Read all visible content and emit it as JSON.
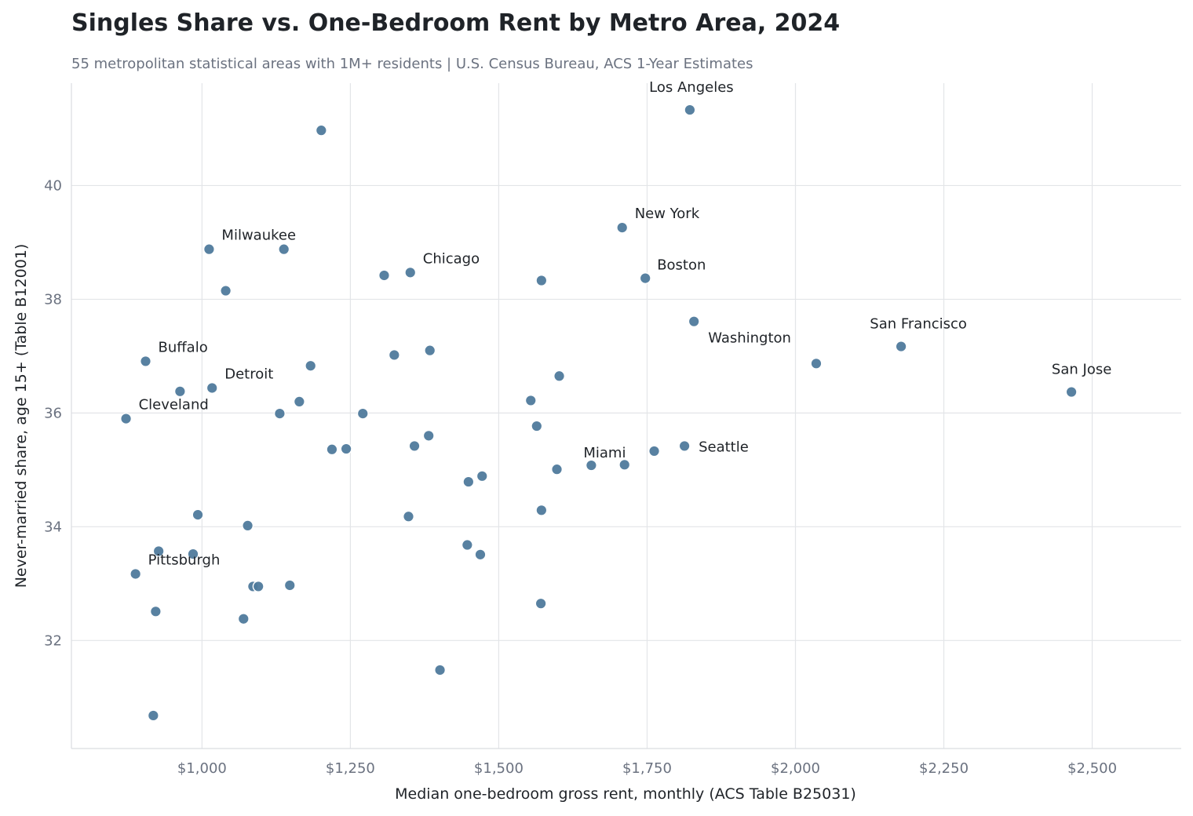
{
  "chart_data": {
    "type": "scatter",
    "title": "Singles Share vs. One-Bedroom Rent by Metro Area, 2024",
    "subtitle": "55 metropolitan statistical areas with 1M+ residents  |  U.S. Census Bureau, ACS 1-Year Estimates",
    "xlabel": "Median one-bedroom gross rent, monthly (ACS Table B25031)",
    "ylabel": "Never-married share, age 15+ (Table B12001)",
    "xlim": [
      780,
      2650
    ],
    "ylim": [
      30.1,
      41.8
    ],
    "xticks": [
      1000,
      1250,
      1500,
      1750,
      2000,
      2250,
      2500
    ],
    "xtick_labels": [
      "$1,000",
      "$1,250",
      "$1,500",
      "$1,750",
      "$2,000",
      "$2,250",
      "$2,500"
    ],
    "yticks": [
      32,
      34,
      36,
      38,
      40
    ],
    "ytick_labels": [
      "32",
      "34",
      "36",
      "38",
      "40"
    ],
    "grid": true,
    "point_color": "#4f7a9c",
    "points": [
      {
        "x": 1822,
        "y": 41.33,
        "label": "Los Angeles"
      },
      {
        "x": 1201,
        "y": 40.97
      },
      {
        "x": 1708,
        "y": 39.26,
        "label": "New York"
      },
      {
        "x": 1012,
        "y": 38.88,
        "label": "Milwaukee"
      },
      {
        "x": 1138,
        "y": 38.88
      },
      {
        "x": 1307,
        "y": 38.42
      },
      {
        "x": 1351,
        "y": 38.47,
        "label": "Chicago"
      },
      {
        "x": 1572,
        "y": 38.33
      },
      {
        "x": 1747,
        "y": 38.37,
        "label": "Boston"
      },
      {
        "x": 1040,
        "y": 38.15
      },
      {
        "x": 1829,
        "y": 37.61,
        "label": "Washington"
      },
      {
        "x": 2178,
        "y": 37.17,
        "label": "San Francisco"
      },
      {
        "x": 1384,
        "y": 37.1
      },
      {
        "x": 1324,
        "y": 37.02
      },
      {
        "x": 905,
        "y": 36.91,
        "label": "Buffalo"
      },
      {
        "x": 1183,
        "y": 36.83
      },
      {
        "x": 2035,
        "y": 36.87
      },
      {
        "x": 1602,
        "y": 36.65
      },
      {
        "x": 1017,
        "y": 36.44,
        "label": "Detroit"
      },
      {
        "x": 963,
        "y": 36.38
      },
      {
        "x": 2465,
        "y": 36.37,
        "label": "San Jose"
      },
      {
        "x": 1164,
        "y": 36.2
      },
      {
        "x": 1554,
        "y": 36.22
      },
      {
        "x": 1131,
        "y": 35.99
      },
      {
        "x": 1271,
        "y": 35.99
      },
      {
        "x": 872,
        "y": 35.9,
        "label": "Cleveland"
      },
      {
        "x": 1564,
        "y": 35.77
      },
      {
        "x": 1382,
        "y": 35.6
      },
      {
        "x": 1358,
        "y": 35.42
      },
      {
        "x": 1813,
        "y": 35.42,
        "label": "Seattle"
      },
      {
        "x": 1219,
        "y": 35.36
      },
      {
        "x": 1243,
        "y": 35.37
      },
      {
        "x": 1762,
        "y": 35.33
      },
      {
        "x": 1656,
        "y": 35.08,
        "label": "Miami"
      },
      {
        "x": 1712,
        "y": 35.09
      },
      {
        "x": 1598,
        "y": 35.01
      },
      {
        "x": 1472,
        "y": 34.89
      },
      {
        "x": 1449,
        "y": 34.79
      },
      {
        "x": 1572,
        "y": 34.29
      },
      {
        "x": 993,
        "y": 34.21
      },
      {
        "x": 1348,
        "y": 34.18
      },
      {
        "x": 1077,
        "y": 34.02
      },
      {
        "x": 1447,
        "y": 33.68
      },
      {
        "x": 927,
        "y": 33.57
      },
      {
        "x": 985,
        "y": 33.52
      },
      {
        "x": 1469,
        "y": 33.51
      },
      {
        "x": 888,
        "y": 33.17,
        "label": "Pittsburgh"
      },
      {
        "x": 1086,
        "y": 32.95
      },
      {
        "x": 1095,
        "y": 32.95
      },
      {
        "x": 1148,
        "y": 32.97
      },
      {
        "x": 1571,
        "y": 32.65
      },
      {
        "x": 922,
        "y": 32.51
      },
      {
        "x": 1070,
        "y": 32.38
      },
      {
        "x": 1401,
        "y": 31.48
      },
      {
        "x": 918,
        "y": 30.68
      }
    ]
  }
}
